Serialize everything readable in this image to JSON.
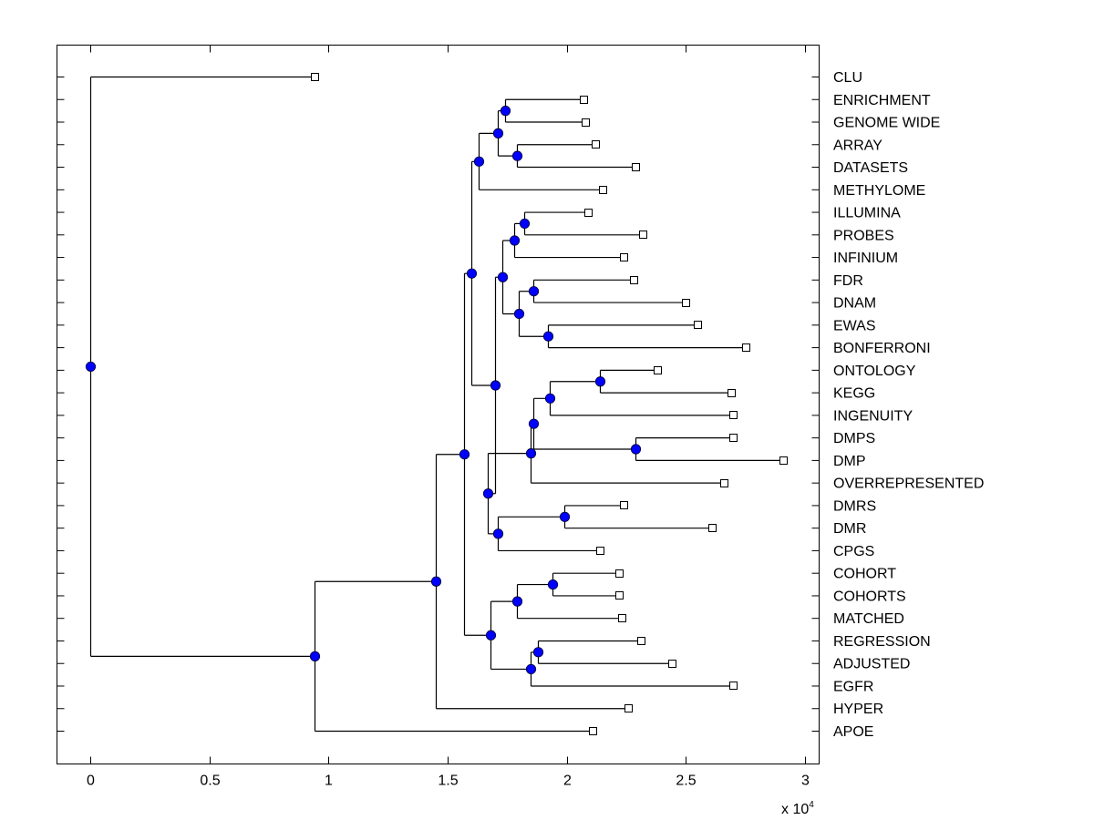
{
  "chart_data": {
    "type": "dendrogram",
    "title": "",
    "xlabel": "",
    "ylabel": "",
    "x_multiplier_label": "x 10",
    "x_multiplier_exponent": "4",
    "xlim": [
      -0.14,
      3.06
    ],
    "xticks": [
      0,
      0.5,
      1,
      1.5,
      2,
      2.5,
      3
    ],
    "xtick_labels": [
      "0",
      "0.5",
      "1",
      "1.5",
      "2",
      "2.5",
      "3"
    ],
    "grid": false,
    "node_color": "#0000ff",
    "leaves": [
      "CLU",
      "ENRICHMENT",
      "GENOME WIDE",
      "ARRAY",
      "DATASETS",
      "METHYLOME",
      "ILLUMINA",
      "PROBES",
      "INFINIUM",
      "FDR",
      "DNAM",
      "EWAS",
      "BONFERRONI",
      "ONTOLOGY",
      "KEGG",
      "INGENUITY",
      "DMPS",
      "DMP",
      "OVERREPRESENTED",
      "DMRS",
      "DMR",
      "CPGS",
      "COHORT",
      "COHORTS",
      "MATCHED",
      "REGRESSION",
      "ADJUSTED",
      "EGFR",
      "HYPER",
      "APOE"
    ],
    "leaf_values": {
      "CLU": 0.94,
      "ENRICHMENT": 2.07,
      "GENOME WIDE": 2.08,
      "ARRAY": 2.12,
      "DATASETS": 2.29,
      "METHYLOME": 2.15,
      "ILLUMINA": 2.09,
      "PROBES": 2.32,
      "INFINIUM": 2.24,
      "FDR": 2.28,
      "DNAM": 2.5,
      "EWAS": 2.55,
      "BONFERRONI": 2.75,
      "ONTOLOGY": 2.38,
      "KEGG": 2.69,
      "INGENUITY": 2.7,
      "DMPS": 2.7,
      "DMP": 2.91,
      "OVERREPRESENTED": 2.66,
      "DMRS": 2.24,
      "DMR": 2.61,
      "CPGS": 2.14,
      "COHORT": 2.22,
      "COHORTS": 2.22,
      "MATCHED": 2.23,
      "REGRESSION": 2.31,
      "ADJUSTED": 2.44,
      "EGFR": 2.7,
      "HYPER": 2.26,
      "APOE": 2.11
    },
    "tree": {
      "h": 0.0,
      "children": [
        {
          "leaf": "CLU"
        },
        {
          "h": 0.94,
          "children": [
            {
              "h": 1.45,
              "children": [
                {
                  "h": 1.57,
                  "children": [
                    {
                      "h": 1.6,
                      "children": [
                        {
                          "h": 1.63,
                          "children": [
                            {
                              "h": 1.71,
                              "children": [
                                {
                                  "h": 1.74,
                                  "children": [
                                    {
                                      "leaf": "ENRICHMENT"
                                    },
                                    {
                                      "leaf": "GENOME WIDE"
                                    }
                                  ]
                                },
                                {
                                  "h": 1.79,
                                  "children": [
                                    {
                                      "leaf": "ARRAY"
                                    },
                                    {
                                      "leaf": "DATASETS"
                                    }
                                  ]
                                }
                              ]
                            },
                            {
                              "leaf": "METHYLOME"
                            }
                          ]
                        },
                        {
                          "h": 1.7,
                          "children": [
                            {
                              "h": 1.73,
                              "children": [
                                {
                                  "h": 1.78,
                                  "children": [
                                    {
                                      "h": 1.82,
                                      "children": [
                                        {
                                          "leaf": "ILLUMINA"
                                        },
                                        {
                                          "leaf": "PROBES"
                                        }
                                      ]
                                    },
                                    {
                                      "leaf": "INFINIUM"
                                    }
                                  ]
                                },
                                {
                                  "h": 1.8,
                                  "children": [
                                    {
                                      "h": 1.86,
                                      "children": [
                                        {
                                          "leaf": "FDR"
                                        },
                                        {
                                          "leaf": "DNAM"
                                        }
                                      ]
                                    },
                                    {
                                      "h": 1.92,
                                      "children": [
                                        {
                                          "leaf": "EWAS"
                                        },
                                        {
                                          "leaf": "BONFERRONI"
                                        }
                                      ]
                                    }
                                  ]
                                }
                              ]
                            },
                            {
                              "h": 1.67,
                              "children": [
                                {
                                  "h": 1.85,
                                  "children": [
                                    {
                                      "h": 1.86,
                                      "children": [
                                        {
                                          "h": 1.93,
                                          "children": [
                                            {
                                              "h": 2.14,
                                              "children": [
                                                {
                                                  "leaf": "ONTOLOGY"
                                                },
                                                {
                                                  "leaf": "KEGG"
                                                }
                                              ]
                                            },
                                            {
                                              "leaf": "INGENUITY"
                                            }
                                          ]
                                        },
                                        {
                                          "h": 2.29,
                                          "children": [
                                            {
                                              "leaf": "DMPS"
                                            },
                                            {
                                              "leaf": "DMP"
                                            }
                                          ]
                                        }
                                      ]
                                    },
                                    {
                                      "leaf": "OVERREPRESENTED"
                                    }
                                  ]
                                },
                                {
                                  "h": 1.71,
                                  "children": [
                                    {
                                      "h": 1.99,
                                      "children": [
                                        {
                                          "leaf": "DMRS"
                                        },
                                        {
                                          "leaf": "DMR"
                                        }
                                      ]
                                    },
                                    {
                                      "leaf": "CPGS"
                                    }
                                  ]
                                }
                              ]
                            }
                          ]
                        }
                      ]
                    },
                    {
                      "h": 1.68,
                      "children": [
                        {
                          "h": 1.79,
                          "children": [
                            {
                              "h": 1.94,
                              "children": [
                                {
                                  "leaf": "COHORT"
                                },
                                {
                                  "leaf": "COHORTS"
                                }
                              ]
                            },
                            {
                              "leaf": "MATCHED"
                            }
                          ]
                        },
                        {
                          "h": 1.85,
                          "children": [
                            {
                              "h": 1.88,
                              "children": [
                                {
                                  "leaf": "REGRESSION"
                                },
                                {
                                  "leaf": "ADJUSTED"
                                }
                              ]
                            },
                            {
                              "leaf": "EGFR"
                            }
                          ]
                        }
                      ]
                    }
                  ]
                },
                {
                  "leaf": "HYPER"
                }
              ]
            },
            {
              "leaf": "APOE"
            }
          ]
        }
      ]
    }
  }
}
